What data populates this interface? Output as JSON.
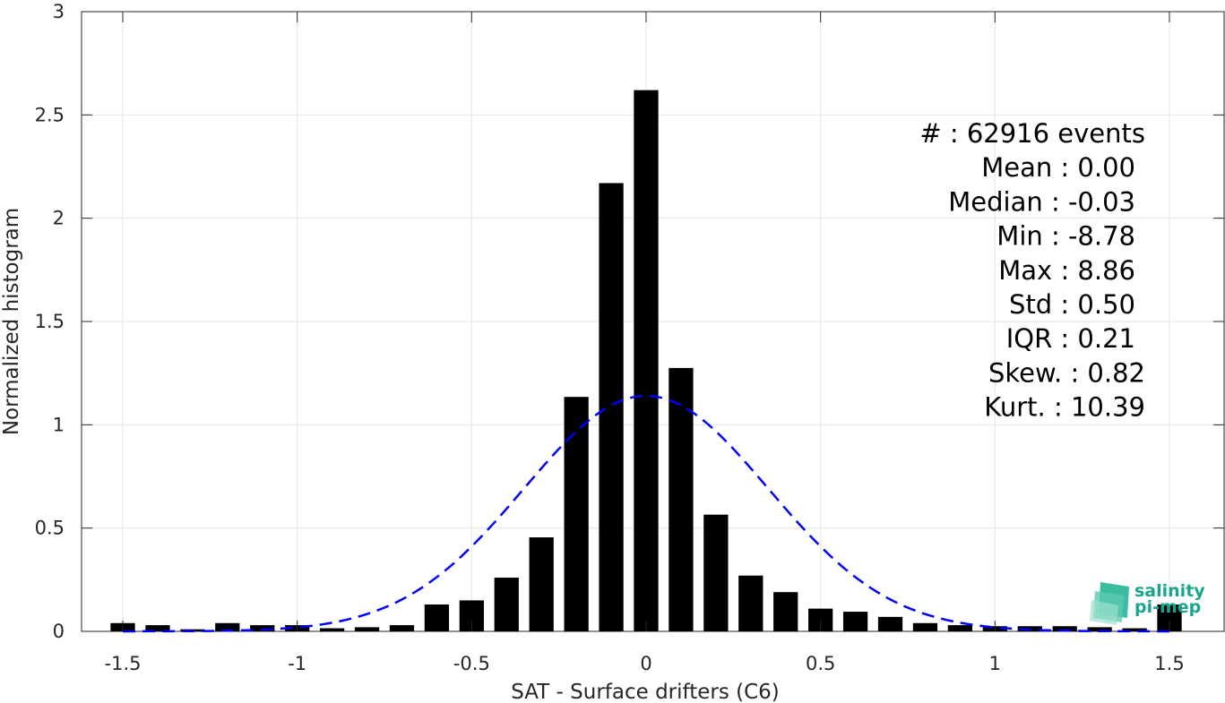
{
  "chart_data": {
    "type": "bar",
    "xlabel": "SAT - Surface drifters (C6)",
    "ylabel": "Normalized histogram",
    "xlim": [
      -1.55,
      1.55
    ],
    "ylim": [
      0,
      3
    ],
    "xticks": [
      -1.5,
      -1,
      -0.5,
      0,
      0.5,
      1,
      1.5
    ],
    "xtick_labels": [
      "-1.5",
      "-1",
      "-0.5",
      "0",
      "0.5",
      "1",
      "1.5"
    ],
    "yticks": [
      0,
      0.5,
      1,
      1.5,
      2,
      2.5,
      3
    ],
    "ytick_labels": [
      "0",
      "0.5",
      "1",
      "1.5",
      "2",
      "2.5",
      "3"
    ],
    "grid": true,
    "bar_color": "#000000",
    "bar_width": 0.07,
    "bins": [
      {
        "x": -1.5,
        "value": 0.04
      },
      {
        "x": -1.4,
        "value": 0.03
      },
      {
        "x": -1.3,
        "value": 0.01
      },
      {
        "x": -1.2,
        "value": 0.04
      },
      {
        "x": -1.1,
        "value": 0.03
      },
      {
        "x": -1.0,
        "value": 0.03
      },
      {
        "x": -0.9,
        "value": 0.015
      },
      {
        "x": -0.8,
        "value": 0.02
      },
      {
        "x": -0.7,
        "value": 0.03
      },
      {
        "x": -0.6,
        "value": 0.13
      },
      {
        "x": -0.5,
        "value": 0.15
      },
      {
        "x": -0.4,
        "value": 0.26
      },
      {
        "x": -0.3,
        "value": 0.455
      },
      {
        "x": -0.2,
        "value": 1.135
      },
      {
        "x": -0.1,
        "value": 2.17
      },
      {
        "x": 0.0,
        "value": 2.62
      },
      {
        "x": 0.1,
        "value": 1.275
      },
      {
        "x": 0.2,
        "value": 0.565
      },
      {
        "x": 0.3,
        "value": 0.27
      },
      {
        "x": 0.4,
        "value": 0.19
      },
      {
        "x": 0.5,
        "value": 0.11
      },
      {
        "x": 0.6,
        "value": 0.095
      },
      {
        "x": 0.7,
        "value": 0.07
      },
      {
        "x": 0.8,
        "value": 0.04
      },
      {
        "x": 0.9,
        "value": 0.03
      },
      {
        "x": 1.0,
        "value": 0.025
      },
      {
        "x": 1.1,
        "value": 0.025
      },
      {
        "x": 1.2,
        "value": 0.025
      },
      {
        "x": 1.3,
        "value": 0.02
      },
      {
        "x": 1.4,
        "value": 0.015
      },
      {
        "x": 1.5,
        "value": 0.13
      }
    ],
    "fit_curve": {
      "type": "gaussian",
      "mean": 0.0,
      "std": 0.35,
      "peak": 1.14,
      "color": "#0000ff",
      "style": "dashed"
    },
    "stats": [
      "#  : 62916 events",
      "Mean : 0.00",
      "Median : -0.03",
      "Min : -8.78",
      "Max : 8.86",
      "Std : 0.50",
      "IQR : 0.21",
      "Skew. : 0.82",
      "Kurt. : 10.39"
    ]
  },
  "logo": {
    "line1": "salinity",
    "line2": "pi-mep",
    "color": "#1aa58e"
  }
}
